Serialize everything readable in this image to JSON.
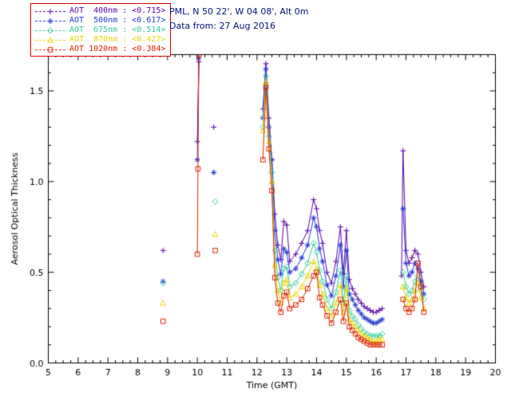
{
  "header": {
    "station": "PML, N 50 22', W 04 08', Alt 0m",
    "date_line": "Data from: 27 Aug 2016"
  },
  "legend": {
    "border_color": "#dd0000",
    "items": [
      {
        "text": "AOT  400nm : <0.715>",
        "color": "#5a00a3"
      },
      {
        "text": "AOT  500nm : <0.617>",
        "color": "#2438d8"
      },
      {
        "text": "AOT  675nm : <0.514>",
        "color": "#2ecc9a"
      },
      {
        "text": "AOT  870nm : <0.427>",
        "color": "#e8d400"
      },
      {
        "text": "AOT 1020nm : <0.384>",
        "color": "#dd2200"
      }
    ]
  },
  "colors": {
    "axis": "#000000",
    "header_text": "#00127a",
    "background": "#ffffff"
  },
  "chart_data": {
    "type": "line",
    "title": "",
    "xlabel": "Time (GMT)",
    "ylabel": "Aerosol Optical Thickness",
    "xlim": [
      5,
      20
    ],
    "ylim": [
      0,
      1.7
    ],
    "xticks": [
      5,
      6,
      7,
      8,
      9,
      10,
      11,
      12,
      13,
      14,
      15,
      16,
      17,
      18,
      19,
      20
    ],
    "yticks": [
      0.0,
      0.5,
      1.0,
      1.5
    ],
    "grid": false,
    "legend_position": "top-left",
    "gap_threshold": 0.35,
    "series": [
      {
        "name": "AOT 400nm",
        "wavelength_nm": 400,
        "mean": 0.715,
        "color": "#5a00a3",
        "marker": "plus",
        "points": [
          [
            8.85,
            0.62
          ],
          [
            10.0,
            1.22
          ],
          [
            10.05,
            1.66
          ],
          [
            10.55,
            1.3
          ],
          [
            12.2,
            1.4
          ],
          [
            12.3,
            1.65
          ],
          [
            12.4,
            1.35
          ],
          [
            12.5,
            1.12
          ],
          [
            12.6,
            0.82
          ],
          [
            12.7,
            0.65
          ],
          [
            12.8,
            0.57
          ],
          [
            12.9,
            0.78
          ],
          [
            13.0,
            0.76
          ],
          [
            13.1,
            0.56
          ],
          [
            13.3,
            0.6
          ],
          [
            13.5,
            0.66
          ],
          [
            13.7,
            0.73
          ],
          [
            13.9,
            0.9
          ],
          [
            14.0,
            0.85
          ],
          [
            14.1,
            0.73
          ],
          [
            14.2,
            0.66
          ],
          [
            14.35,
            0.5
          ],
          [
            14.5,
            0.44
          ],
          [
            14.65,
            0.56
          ],
          [
            14.8,
            0.75
          ],
          [
            14.9,
            0.49
          ],
          [
            15.0,
            0.73
          ],
          [
            15.1,
            0.46
          ],
          [
            15.2,
            0.41
          ],
          [
            15.3,
            0.38
          ],
          [
            15.4,
            0.35
          ],
          [
            15.5,
            0.33
          ],
          [
            15.6,
            0.31
          ],
          [
            15.7,
            0.3
          ],
          [
            15.8,
            0.29
          ],
          [
            15.9,
            0.28
          ],
          [
            16.0,
            0.28
          ],
          [
            16.1,
            0.29
          ],
          [
            16.2,
            0.3
          ],
          [
            16.85,
            0.48
          ],
          [
            16.9,
            1.17
          ],
          [
            17.0,
            0.62
          ],
          [
            17.1,
            0.55
          ],
          [
            17.2,
            0.58
          ],
          [
            17.3,
            0.62
          ],
          [
            17.4,
            0.6
          ],
          [
            17.5,
            0.5
          ],
          [
            17.6,
            0.42
          ]
        ]
      },
      {
        "name": "AOT 500nm",
        "wavelength_nm": 500,
        "mean": 0.617,
        "color": "#2438d8",
        "marker": "asterisk",
        "points": [
          [
            8.85,
            0.45
          ],
          [
            10.0,
            1.12
          ],
          [
            10.05,
            1.68
          ],
          [
            10.55,
            1.05
          ],
          [
            12.2,
            1.35
          ],
          [
            12.3,
            1.62
          ],
          [
            12.4,
            1.3
          ],
          [
            12.5,
            1.12
          ],
          [
            12.6,
            0.73
          ],
          [
            12.7,
            0.57
          ],
          [
            12.8,
            0.49
          ],
          [
            12.9,
            0.63
          ],
          [
            13.0,
            0.61
          ],
          [
            13.1,
            0.5
          ],
          [
            13.3,
            0.52
          ],
          [
            13.5,
            0.58
          ],
          [
            13.7,
            0.65
          ],
          [
            13.9,
            0.8
          ],
          [
            14.0,
            0.75
          ],
          [
            14.1,
            0.63
          ],
          [
            14.2,
            0.56
          ],
          [
            14.35,
            0.43
          ],
          [
            14.5,
            0.37
          ],
          [
            14.65,
            0.48
          ],
          [
            14.8,
            0.65
          ],
          [
            14.9,
            0.42
          ],
          [
            15.0,
            0.62
          ],
          [
            15.1,
            0.38
          ],
          [
            15.2,
            0.35
          ],
          [
            15.3,
            0.32
          ],
          [
            15.4,
            0.29
          ],
          [
            15.5,
            0.27
          ],
          [
            15.6,
            0.25
          ],
          [
            15.7,
            0.24
          ],
          [
            15.8,
            0.23
          ],
          [
            15.9,
            0.22
          ],
          [
            16.0,
            0.22
          ],
          [
            16.1,
            0.23
          ],
          [
            16.2,
            0.24
          ],
          [
            16.9,
            0.85
          ],
          [
            17.0,
            0.55
          ],
          [
            17.1,
            0.48
          ],
          [
            17.2,
            0.5
          ],
          [
            17.3,
            0.55
          ],
          [
            17.4,
            0.52
          ],
          [
            17.5,
            0.45
          ],
          [
            17.6,
            0.38
          ]
        ]
      },
      {
        "name": "AOT 675nm",
        "wavelength_nm": 675,
        "mean": 0.514,
        "color": "#2ecc9a",
        "marker": "diamond",
        "points": [
          [
            8.85,
            0.44
          ],
          [
            10.6,
            0.89
          ],
          [
            12.2,
            1.3
          ],
          [
            12.3,
            1.58
          ],
          [
            12.4,
            1.25
          ],
          [
            12.5,
            1.05
          ],
          [
            12.6,
            0.62
          ],
          [
            12.7,
            0.47
          ],
          [
            12.8,
            0.4
          ],
          [
            12.9,
            0.52
          ],
          [
            13.0,
            0.53
          ],
          [
            13.1,
            0.42
          ],
          [
            13.3,
            0.44
          ],
          [
            13.5,
            0.49
          ],
          [
            13.7,
            0.55
          ],
          [
            13.9,
            0.66
          ],
          [
            14.0,
            0.61
          ],
          [
            14.1,
            0.51
          ],
          [
            14.2,
            0.45
          ],
          [
            14.35,
            0.35
          ],
          [
            14.5,
            0.3
          ],
          [
            14.65,
            0.39
          ],
          [
            14.8,
            0.51
          ],
          [
            14.9,
            0.33
          ],
          [
            15.0,
            0.48
          ],
          [
            15.1,
            0.29
          ],
          [
            15.2,
            0.26
          ],
          [
            15.3,
            0.24
          ],
          [
            15.4,
            0.21
          ],
          [
            15.5,
            0.19
          ],
          [
            15.6,
            0.17
          ],
          [
            15.7,
            0.16
          ],
          [
            15.8,
            0.15
          ],
          [
            15.9,
            0.15
          ],
          [
            16.0,
            0.15
          ],
          [
            16.1,
            0.15
          ],
          [
            16.2,
            0.16
          ],
          [
            16.9,
            0.5
          ],
          [
            17.0,
            0.42
          ],
          [
            17.1,
            0.38
          ],
          [
            17.2,
            0.4
          ],
          [
            17.3,
            0.45
          ],
          [
            17.4,
            0.48
          ],
          [
            17.5,
            0.4
          ],
          [
            17.6,
            0.35
          ]
        ]
      },
      {
        "name": "AOT 870nm",
        "wavelength_nm": 870,
        "mean": 0.427,
        "color": "#e8d400",
        "marker": "triangle",
        "points": [
          [
            8.85,
            0.33
          ],
          [
            10.6,
            0.71
          ],
          [
            12.2,
            1.28
          ],
          [
            12.3,
            1.55
          ],
          [
            12.4,
            1.22
          ],
          [
            12.5,
            1.0
          ],
          [
            12.6,
            0.54
          ],
          [
            12.7,
            0.4
          ],
          [
            12.8,
            0.33
          ],
          [
            12.9,
            0.44
          ],
          [
            13.0,
            0.46
          ],
          [
            13.1,
            0.36
          ],
          [
            13.3,
            0.38
          ],
          [
            13.5,
            0.42
          ],
          [
            13.7,
            0.48
          ],
          [
            13.9,
            0.56
          ],
          [
            14.0,
            0.52
          ],
          [
            14.1,
            0.43
          ],
          [
            14.2,
            0.38
          ],
          [
            14.35,
            0.3
          ],
          [
            14.5,
            0.26
          ],
          [
            14.65,
            0.33
          ],
          [
            14.8,
            0.43
          ],
          [
            14.9,
            0.28
          ],
          [
            15.0,
            0.41
          ],
          [
            15.1,
            0.24
          ],
          [
            15.2,
            0.22
          ],
          [
            15.3,
            0.2
          ],
          [
            15.4,
            0.18
          ],
          [
            15.5,
            0.16
          ],
          [
            15.6,
            0.15
          ],
          [
            15.7,
            0.14
          ],
          [
            15.8,
            0.13
          ],
          [
            15.9,
            0.12
          ],
          [
            16.0,
            0.12
          ],
          [
            16.1,
            0.13
          ],
          [
            16.2,
            0.13
          ],
          [
            16.9,
            0.42
          ],
          [
            17.0,
            0.36
          ],
          [
            17.1,
            0.33
          ],
          [
            17.2,
            0.35
          ],
          [
            17.3,
            0.4
          ],
          [
            17.4,
            0.44
          ],
          [
            17.5,
            0.36
          ],
          [
            17.6,
            0.3
          ]
        ]
      },
      {
        "name": "AOT 1020nm",
        "wavelength_nm": 1020,
        "mean": 0.384,
        "color": "#dd2200",
        "marker": "square",
        "points": [
          [
            8.85,
            0.23
          ],
          [
            10.0,
            0.6
          ],
          [
            10.02,
            1.07
          ],
          [
            10.05,
            1.7
          ],
          [
            10.6,
            0.62
          ],
          [
            12.2,
            1.12
          ],
          [
            12.3,
            1.52
          ],
          [
            12.4,
            1.18
          ],
          [
            12.5,
            0.95
          ],
          [
            12.6,
            0.47
          ],
          [
            12.7,
            0.33
          ],
          [
            12.8,
            0.28
          ],
          [
            12.9,
            0.37
          ],
          [
            13.0,
            0.39
          ],
          [
            13.1,
            0.3
          ],
          [
            13.3,
            0.32
          ],
          [
            13.5,
            0.35
          ],
          [
            13.7,
            0.41
          ],
          [
            13.9,
            0.48
          ],
          [
            14.0,
            0.5
          ],
          [
            14.1,
            0.36
          ],
          [
            14.2,
            0.32
          ],
          [
            14.35,
            0.26
          ],
          [
            14.5,
            0.22
          ],
          [
            14.65,
            0.28
          ],
          [
            14.8,
            0.35
          ],
          [
            14.9,
            0.23
          ],
          [
            15.0,
            0.33
          ],
          [
            15.1,
            0.2
          ],
          [
            15.2,
            0.18
          ],
          [
            15.3,
            0.16
          ],
          [
            15.4,
            0.14
          ],
          [
            15.5,
            0.13
          ],
          [
            15.6,
            0.12
          ],
          [
            15.7,
            0.11
          ],
          [
            15.8,
            0.1
          ],
          [
            15.9,
            0.1
          ],
          [
            16.0,
            0.1
          ],
          [
            16.1,
            0.1
          ],
          [
            16.2,
            0.1
          ],
          [
            16.9,
            0.35
          ],
          [
            17.0,
            0.3
          ],
          [
            17.1,
            0.28
          ],
          [
            17.2,
            0.3
          ],
          [
            17.3,
            0.35
          ],
          [
            17.4,
            0.55
          ],
          [
            17.5,
            0.42
          ],
          [
            17.6,
            0.28
          ]
        ]
      }
    ]
  }
}
